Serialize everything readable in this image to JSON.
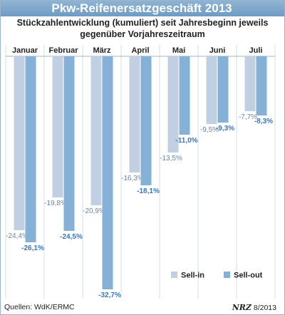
{
  "chart_data": {
    "type": "bar",
    "title": "Pkw-Reifenersatzgeschäft 2013",
    "subtitle": [
      "Stückzahlentwicklung (kumuliert) seit Jahresbeginn jeweils",
      "gegenüber Vorjahreszeitraum"
    ],
    "categories": [
      "Januar",
      "Februar",
      "März",
      "April",
      "Mai",
      "Juni",
      "Juli"
    ],
    "series": [
      {
        "name": "Sell-in",
        "color": "#c0d0e2",
        "values": [
          -24.4,
          -19.8,
          -20.9,
          -16.3,
          -13.5,
          -9.5,
          -7.7
        ],
        "labels": [
          "-24,4%",
          "-19,8%",
          "-20,9%",
          "-16,3%",
          "-13,5%",
          "-9,5%",
          "-7,7%"
        ]
      },
      {
        "name": "Sell-out",
        "color": "#86b1d6",
        "values": [
          -26.1,
          -24.5,
          -32.7,
          -18.1,
          -11.0,
          -9.3,
          -8.3
        ],
        "labels": [
          "-26,1%",
          "-24,5%",
          "-32,7%",
          "-18,1%",
          "-11,0%",
          "-9,3%",
          "-8,3%"
        ]
      }
    ],
    "ylim": [
      -34,
      0
    ]
  },
  "footer": {
    "source": "Quellen: WdK/ERMC",
    "brand": "NRZ",
    "date": "8/2013"
  }
}
